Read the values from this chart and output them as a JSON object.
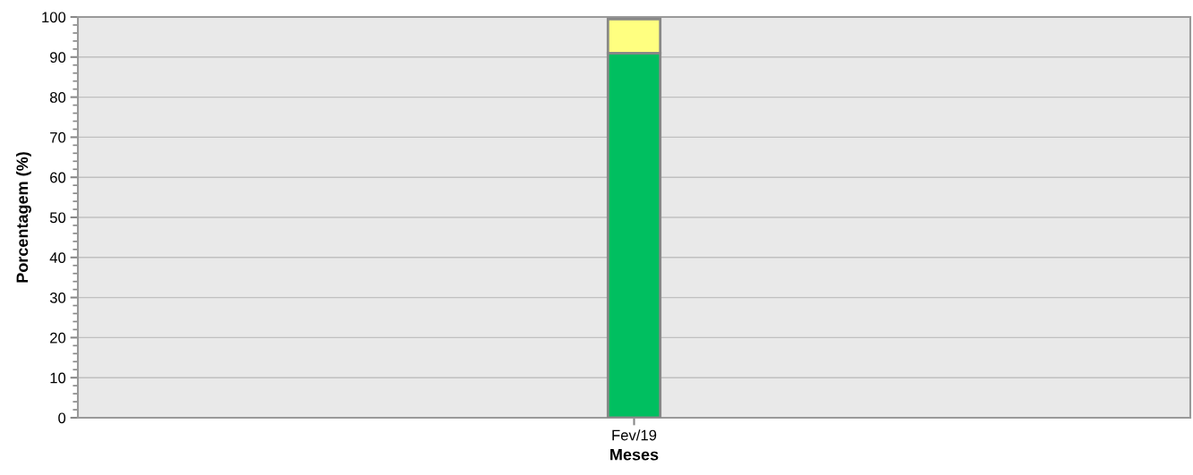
{
  "chart_data": {
    "type": "bar",
    "stacked": true,
    "xlabel": "Meses",
    "ylabel": "Porcentagem (%)",
    "categories": [
      "Fev/19"
    ],
    "series": [
      {
        "color": "#00bf60",
        "values": [
          91
        ]
      },
      {
        "color": "#ffff80",
        "values": [
          8.5
        ]
      }
    ],
    "ylim": [
      0,
      100
    ],
    "yticks": [
      0,
      10,
      20,
      30,
      40,
      50,
      60,
      70,
      80,
      90,
      100
    ],
    "grid": "y",
    "legend": false
  }
}
